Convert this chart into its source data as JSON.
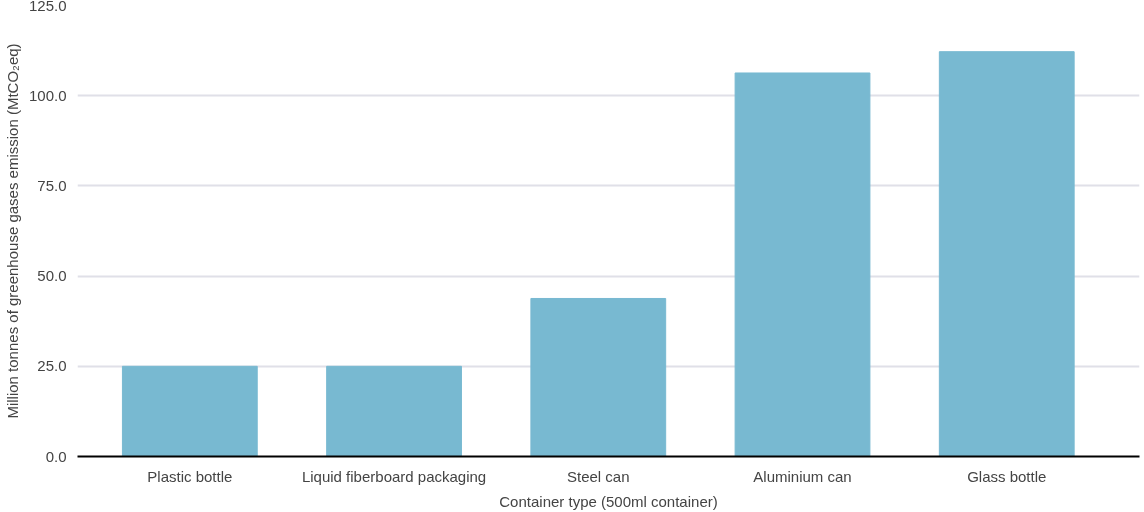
{
  "chart_data": {
    "type": "bar",
    "categories": [
      "Plastic bottle",
      "Liquid fiberboard packaging",
      "Steel can",
      "Aluminium can",
      "Glass bottle"
    ],
    "values": [
      25.0,
      25.0,
      43.8,
      106.3,
      112.2
    ],
    "color": "#78b9d1",
    "xlabel": "Container type (500ml container)",
    "ylabel": "Million tonnes of greenhouse gases emission (MtCO₂eq)",
    "ylim": [
      0,
      125
    ],
    "yticks": [
      {
        "value": 0,
        "label": "0.0"
      },
      {
        "value": 25,
        "label": "25.0"
      },
      {
        "value": 50,
        "label": "50.0"
      },
      {
        "value": 75,
        "label": "75.0"
      },
      {
        "value": 100,
        "label": "100.0"
      },
      {
        "value": 125,
        "label": "125.0"
      }
    ],
    "grid": "y"
  }
}
